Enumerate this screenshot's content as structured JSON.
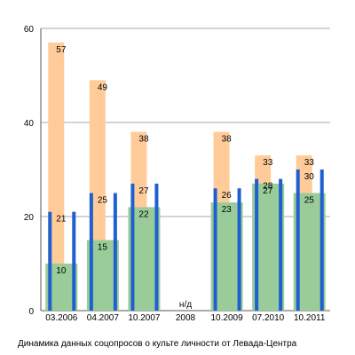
{
  "caption": "Динамика данных соцопросов о культе личности от Левада-Центра",
  "chart_data": {
    "type": "bar",
    "categories": [
      "03.2006",
      "04.2007",
      "10.2007",
      "2008",
      "10.2009",
      "07.2010",
      "10.2011"
    ],
    "category_note": {
      "2008": "н/д"
    },
    "ylim": [
      0,
      60
    ],
    "yticks": [
      0,
      20,
      40,
      60
    ],
    "grid": true,
    "series": [
      {
        "color": "#ffcc99",
        "values": [
          57,
          49,
          38,
          null,
          38,
          33,
          33
        ]
      },
      {
        "color": "#1f5fcf",
        "values": [
          21,
          25,
          27,
          null,
          26,
          28,
          30
        ]
      },
      {
        "color": "#99cc99",
        "values": [
          10,
          15,
          22,
          null,
          23,
          27,
          25
        ]
      }
    ],
    "title": "",
    "xlabel": "",
    "ylabel": ""
  }
}
